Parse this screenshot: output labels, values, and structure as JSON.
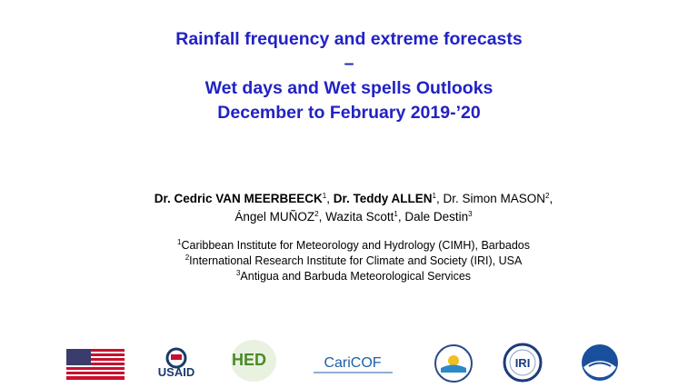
{
  "title_lines": [
    "Rainfall frequency and extreme forecasts",
    "–",
    "Wet days and Wet spells Outlooks",
    "December to February 2019-’20"
  ],
  "author_lines": [
    [
      {
        "name": "Dr. Cedric VAN MEERBEECK",
        "affiliation": "1",
        "separator": ", ",
        "bold": true
      },
      {
        "name": "Dr. Teddy ALLEN",
        "affiliation": "1",
        "separator": ", ",
        "bold": true
      },
      {
        "name": "Dr. Simon MASON",
        "affiliation": "2",
        "separator": ",",
        "bold": false
      }
    ],
    [
      {
        "name": "Ángel MUÑOZ",
        "affiliation": "2",
        "separator": ", ",
        "bold": false
      },
      {
        "name": "Wazita Scott",
        "affiliation": "1",
        "separator": ", ",
        "bold": false
      },
      {
        "name": "Dale Destin",
        "affiliation": "3",
        "bold": false
      }
    ]
  ],
  "affiliations": [
    {
      "mark": "1",
      "text": "Caribbean Institute for Meteorology and Hydrology (CIMH), Barbados"
    },
    {
      "mark": "2",
      "text": "International Research Institute for Climate and Society (IRI), USA"
    },
    {
      "mark": "3",
      "text": "Antigua and Barbuda Meteorological Services"
    }
  ],
  "logos": {
    "usaid": "USAID",
    "hed": "HED",
    "caricof": "CariCOF",
    "iri": "IRI"
  }
}
